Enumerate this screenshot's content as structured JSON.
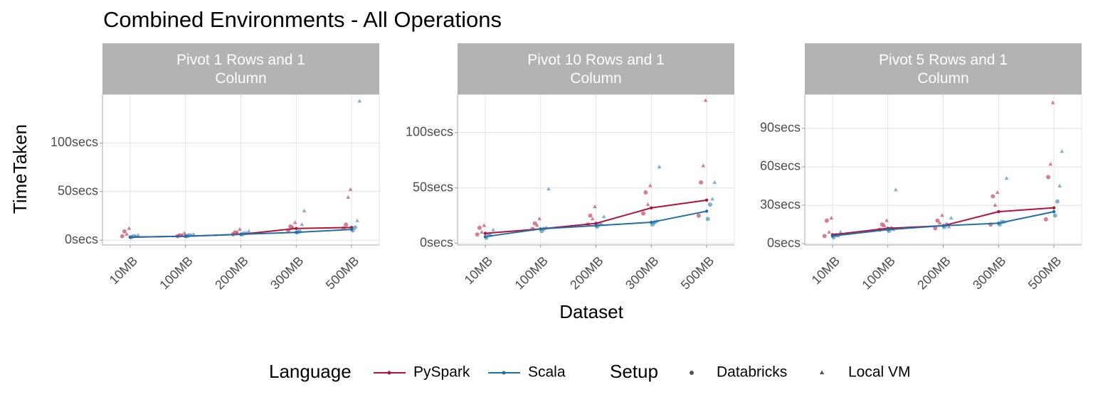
{
  "title": "Combined Environments - All Operations",
  "x_label": "Dataset",
  "y_label": "TimeTaken",
  "legend": {
    "language_title": "Language",
    "setup_title": "Setup",
    "setup_items": [
      {
        "name": "Databricks",
        "marker": "circle"
      },
      {
        "name": "Local VM",
        "marker": "triangle"
      }
    ]
  },
  "chart_data": [
    {
      "type": "line",
      "title": "Pivot 1 Rows and 1 Column",
      "categories": [
        "10MB",
        "100MB",
        "200MB",
        "300MB",
        "500MB"
      ],
      "ylim": [
        -5,
        150
      ],
      "yticks": [
        {
          "value": 0,
          "label": "0secs"
        },
        {
          "value": 50,
          "label": "50secs"
        },
        {
          "value": 100,
          "label": "100secs"
        }
      ],
      "grid": true,
      "series": [
        {
          "name": "PySpark",
          "color": "#b5123a",
          "values": [
            3,
            4,
            6,
            12,
            13
          ]
        },
        {
          "name": "Scala",
          "color": "#1f6fa8",
          "values": [
            3,
            4,
            6,
            8,
            11
          ]
        }
      ],
      "points": [
        {
          "language": "PySpark",
          "setup": "Databricks",
          "values": [
            [
              4,
              9
            ],
            [
              4,
              5
            ],
            [
              6,
              8
            ],
            [
              10,
              14
            ],
            [
              12,
              16
            ]
          ]
        },
        {
          "language": "PySpark",
          "setup": "Local VM",
          "values": [
            [
              6,
              12
            ],
            [
              5,
              7
            ],
            [
              8,
              11
            ],
            [
              13,
              18
            ],
            [
              44,
              52
            ]
          ]
        },
        {
          "language": "Scala",
          "setup": "Databricks",
          "values": [
            [
              3,
              4
            ],
            [
              4,
              5
            ],
            [
              6,
              7
            ],
            [
              8,
              9
            ],
            [
              10,
              13
            ]
          ]
        },
        {
          "language": "Scala",
          "setup": "Local VM",
          "values": [
            [
              4,
              5
            ],
            [
              5,
              6
            ],
            [
              7,
              9
            ],
            [
              16,
              30
            ],
            [
              20,
              143
            ]
          ]
        }
      ]
    },
    {
      "type": "line",
      "title": "Pivot 10 Rows and 1 Column",
      "categories": [
        "10MB",
        "100MB",
        "200MB",
        "300MB",
        "500MB"
      ],
      "ylim": [
        -1.5,
        134.5
      ],
      "yticks": [
        {
          "value": 0,
          "label": "0secs"
        },
        {
          "value": 50,
          "label": "50secs"
        },
        {
          "value": 100,
          "label": "100secs"
        }
      ],
      "grid": true,
      "series": [
        {
          "name": "PySpark",
          "color": "#b5123a",
          "values": [
            9,
            13,
            18,
            32,
            39
          ]
        },
        {
          "name": "Scala",
          "color": "#1f6fa8",
          "values": [
            6,
            13,
            16,
            19,
            29
          ]
        }
      ],
      "points": [
        {
          "language": "PySpark",
          "setup": "Databricks",
          "values": [
            [
              8,
              14
            ],
            [
              13,
              18
            ],
            [
              17,
              25
            ],
            [
              27,
              46
            ],
            [
              25,
              55
            ]
          ]
        },
        {
          "language": "PySpark",
          "setup": "Local VM",
          "values": [
            [
              10,
              16
            ],
            [
              16,
              22
            ],
            [
              22,
              33
            ],
            [
              35,
              52
            ],
            [
              70,
              129
            ]
          ]
        },
        {
          "language": "Scala",
          "setup": "Databricks",
          "values": [
            [
              5,
              8
            ],
            [
              11,
              13
            ],
            [
              15,
              17
            ],
            [
              17,
              19
            ],
            [
              22,
              35
            ]
          ]
        },
        {
          "language": "Scala",
          "setup": "Local VM",
          "values": [
            [
              7,
              12
            ],
            [
              14,
              49
            ],
            [
              17,
              24
            ],
            [
              20,
              69
            ],
            [
              40,
              55
            ]
          ]
        }
      ]
    },
    {
      "type": "line",
      "title": "Pivot 5 Rows and 1 Column",
      "categories": [
        "10MB",
        "100MB",
        "200MB",
        "300MB",
        "500MB"
      ],
      "ylim": [
        -1,
        116.5
      ],
      "yticks": [
        {
          "value": 0,
          "label": "0secs"
        },
        {
          "value": 30,
          "label": "30secs"
        },
        {
          "value": 60,
          "label": "60secs"
        },
        {
          "value": 90,
          "label": "90secs"
        }
      ],
      "grid": true,
      "series": [
        {
          "name": "PySpark",
          "color": "#b5123a",
          "values": [
            7,
            12,
            14,
            25,
            28
          ]
        },
        {
          "name": "Scala",
          "color": "#1f6fa8",
          "values": [
            6,
            11,
            14,
            16,
            25
          ]
        }
      ],
      "points": [
        {
          "language": "PySpark",
          "setup": "Databricks",
          "values": [
            [
              6,
              18
            ],
            [
              11,
              15
            ],
            [
              12,
              18
            ],
            [
              15,
              37
            ],
            [
              19,
              52
            ]
          ]
        },
        {
          "language": "PySpark",
          "setup": "Local VM",
          "values": [
            [
              9,
              20
            ],
            [
              14,
              18
            ],
            [
              16,
              22
            ],
            [
              30,
              40
            ],
            [
              62,
              110
            ]
          ]
        },
        {
          "language": "Scala",
          "setup": "Databricks",
          "values": [
            [
              5,
              7
            ],
            [
              10,
              12
            ],
            [
              13,
              15
            ],
            [
              15,
              17
            ],
            [
              22,
              33
            ]
          ]
        },
        {
          "language": "Scala",
          "setup": "Local VM",
          "values": [
            [
              6,
              9
            ],
            [
              11,
              42
            ],
            [
              13,
              20
            ],
            [
              17,
              51
            ],
            [
              45,
              72
            ]
          ]
        }
      ]
    }
  ]
}
